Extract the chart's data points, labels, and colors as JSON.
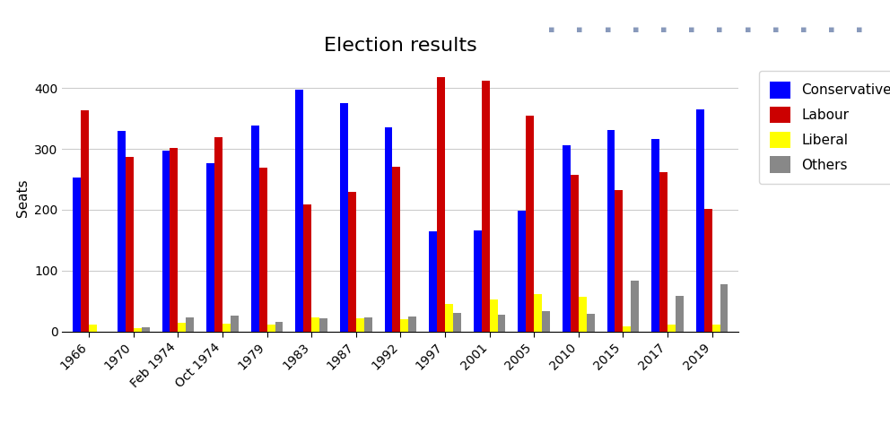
{
  "title": "Election results",
  "ylabel": "Seats",
  "categories": [
    "1966",
    "1970",
    "Feb 1974",
    "Oct 1974",
    "1979",
    "1983",
    "1987",
    "1992",
    "1997",
    "2001",
    "2005",
    "2010",
    "2015",
    "2017",
    "2019"
  ],
  "conservative": [
    253,
    330,
    297,
    277,
    339,
    397,
    376,
    336,
    165,
    166,
    198,
    306,
    331,
    317,
    365
  ],
  "labour": [
    363,
    287,
    301,
    319,
    269,
    209,
    229,
    271,
    418,
    412,
    355,
    258,
    232,
    262,
    202
  ],
  "liberal": [
    12,
    6,
    14,
    13,
    11,
    23,
    22,
    20,
    46,
    52,
    62,
    57,
    8,
    12,
    11
  ],
  "others": [
    0,
    7,
    23,
    26,
    16,
    21,
    23,
    24,
    30,
    28,
    34,
    29,
    83,
    59,
    78
  ],
  "colors": {
    "Conservative": "#0000ff",
    "Labour": "#cc0000",
    "Liberal": "#ffff00",
    "Others": "#888888"
  },
  "ylim": [
    0,
    440
  ],
  "yticks": [
    0,
    100,
    200,
    300,
    400
  ],
  "background_color": "#ffffff",
  "title_fontsize": 16,
  "axis_fontsize": 11,
  "tick_fontsize": 10,
  "legend_fontsize": 11
}
